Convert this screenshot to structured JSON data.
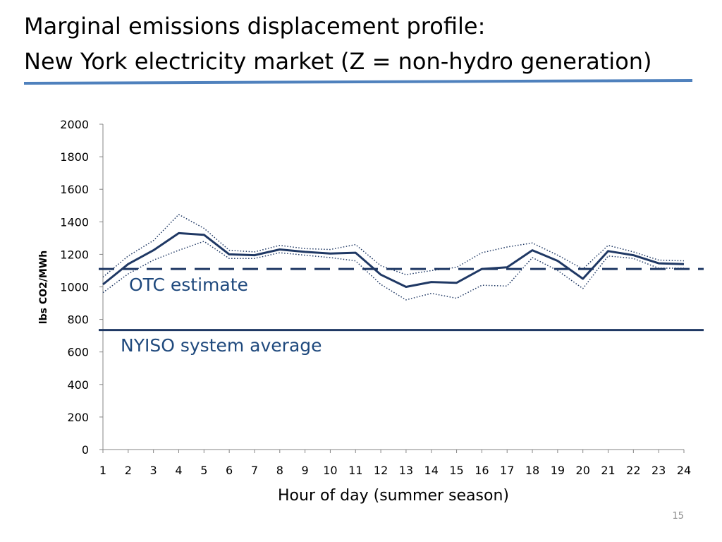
{
  "slide": {
    "title_line1": "Marginal emissions displacement profile:",
    "title_line2": "New York electricity market (Z = non-hydro generation)",
    "page_number": "15",
    "title_rule_color": "#4f81bd"
  },
  "chart_data": {
    "type": "line",
    "xlabel": "Hour of day (summer season)",
    "ylabel": "lbs CO2/MWh",
    "ylim": [
      0,
      2000
    ],
    "yticks": [
      0,
      200,
      400,
      600,
      800,
      1000,
      1200,
      1400,
      1600,
      1800,
      2000
    ],
    "grid": false,
    "x": [
      1,
      2,
      3,
      4,
      5,
      6,
      7,
      8,
      9,
      10,
      11,
      12,
      13,
      14,
      15,
      16,
      17,
      18,
      19,
      20,
      21,
      22,
      23,
      24
    ],
    "series": [
      {
        "role": "estimate",
        "style": "solid",
        "color": "#1f3864",
        "values": [
          1015,
          1140,
          1225,
          1330,
          1320,
          1200,
          1195,
          1230,
          1215,
          1205,
          1210,
          1075,
          1000,
          1030,
          1025,
          1110,
          1120,
          1225,
          1160,
          1050,
          1220,
          1195,
          1145,
          1140
        ]
      },
      {
        "role": "upper bound",
        "style": "dotted",
        "color": "#1f3864",
        "values": [
          1060,
          1190,
          1285,
          1445,
          1360,
          1225,
          1215,
          1255,
          1235,
          1230,
          1260,
          1130,
          1075,
          1100,
          1120,
          1210,
          1245,
          1270,
          1195,
          1110,
          1255,
          1215,
          1165,
          1160
        ]
      },
      {
        "role": "lower bound",
        "style": "dotted",
        "color": "#1f3864",
        "values": [
          965,
          1080,
          1165,
          1225,
          1280,
          1175,
          1175,
          1210,
          1195,
          1180,
          1160,
          1015,
          920,
          960,
          930,
          1010,
          1005,
          1180,
          1100,
          990,
          1190,
          1175,
          1115,
          1115
        ]
      }
    ],
    "reference_lines": [
      {
        "label": "OTC estimate",
        "value": 1110,
        "style": "dashed",
        "color": "#1f3864",
        "label_color": "#1f497d"
      },
      {
        "label": "NYISO system average",
        "value": 735,
        "style": "solid",
        "color": "#1f3864",
        "label_color": "#1f497d"
      }
    ]
  }
}
